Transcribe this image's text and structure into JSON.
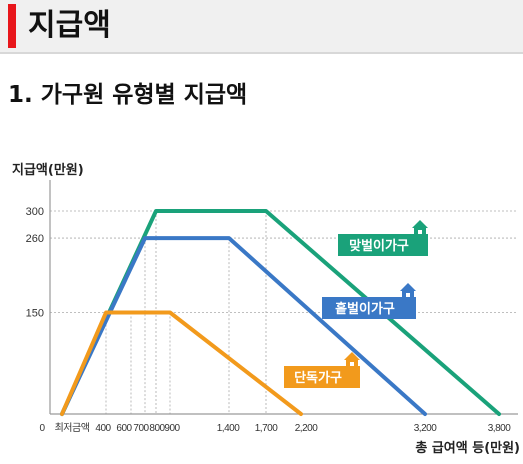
{
  "header": {
    "title": "지급액",
    "accent_color": "#e8161b"
  },
  "section": {
    "title": "1. 가구원 유형별 지급액"
  },
  "chart_data": {
    "type": "line",
    "ylabel": "지급액(만원)",
    "xlabel": "총 급여액 등(만원)",
    "x_tick_labels": [
      "0",
      "최저금액",
      "400",
      "600",
      "700",
      "800",
      "900",
      "1,400",
      "1,700",
      "2,200",
      "3,200",
      "3,800"
    ],
    "y_tick_labels": [
      "300",
      "260",
      "150"
    ],
    "ylim": [
      0,
      300
    ],
    "grid": "dotted vertical and horizontal reference lines",
    "series": [
      {
        "name": "맞벌이가구",
        "color": "#1aa27a",
        "x": [
          "최저금액",
          800,
          1700,
          3800
        ],
        "y": [
          0,
          300,
          300,
          0
        ]
      },
      {
        "name": "홑벌이가구",
        "color": "#3a78c6",
        "x": [
          "최저금액",
          700,
          1400,
          3200
        ],
        "y": [
          0,
          260,
          260,
          0
        ]
      },
      {
        "name": "단독가구",
        "color": "#f29a1c",
        "x": [
          "최저금액",
          400,
          900,
          2200
        ],
        "y": [
          0,
          150,
          150,
          0
        ]
      }
    ]
  }
}
